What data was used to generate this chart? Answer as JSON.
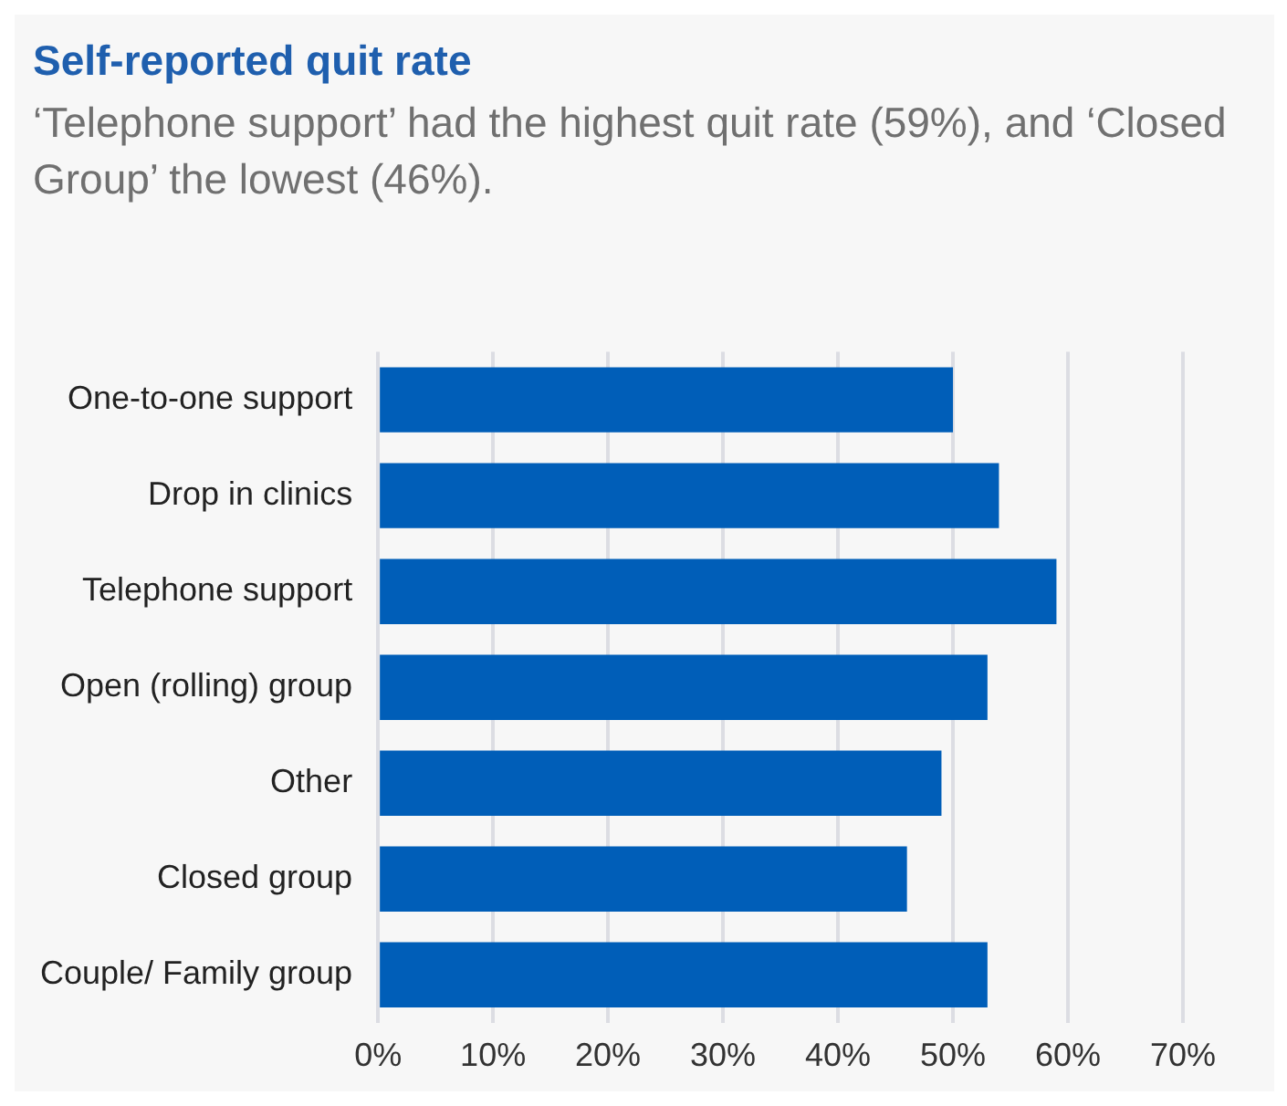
{
  "chart_data": {
    "type": "bar",
    "orientation": "horizontal",
    "title": "Self-reported quit rate",
    "subtitle": "‘Telephone support’ had the highest quit rate (59%), and ‘Closed Group’ the lowest (46%).",
    "categories": [
      "One-to-one support",
      "Drop in clinics",
      "Telephone support",
      "Open (rolling) group",
      "Other",
      "Closed group",
      "Couple/ Family group"
    ],
    "values": [
      50,
      54,
      59,
      53,
      49,
      46,
      53
    ],
    "color": "#005eb8",
    "xlim": [
      0,
      70
    ],
    "xticks": [
      {
        "value": 0,
        "label": "0%"
      },
      {
        "value": 10,
        "label": "10%"
      },
      {
        "value": 20,
        "label": "20%"
      },
      {
        "value": 30,
        "label": "30%"
      },
      {
        "value": 40,
        "label": "40%"
      },
      {
        "value": 50,
        "label": "50%"
      },
      {
        "value": 60,
        "label": "60%"
      },
      {
        "value": 70,
        "label": "70%"
      }
    ],
    "grid": "x",
    "legend": false
  }
}
